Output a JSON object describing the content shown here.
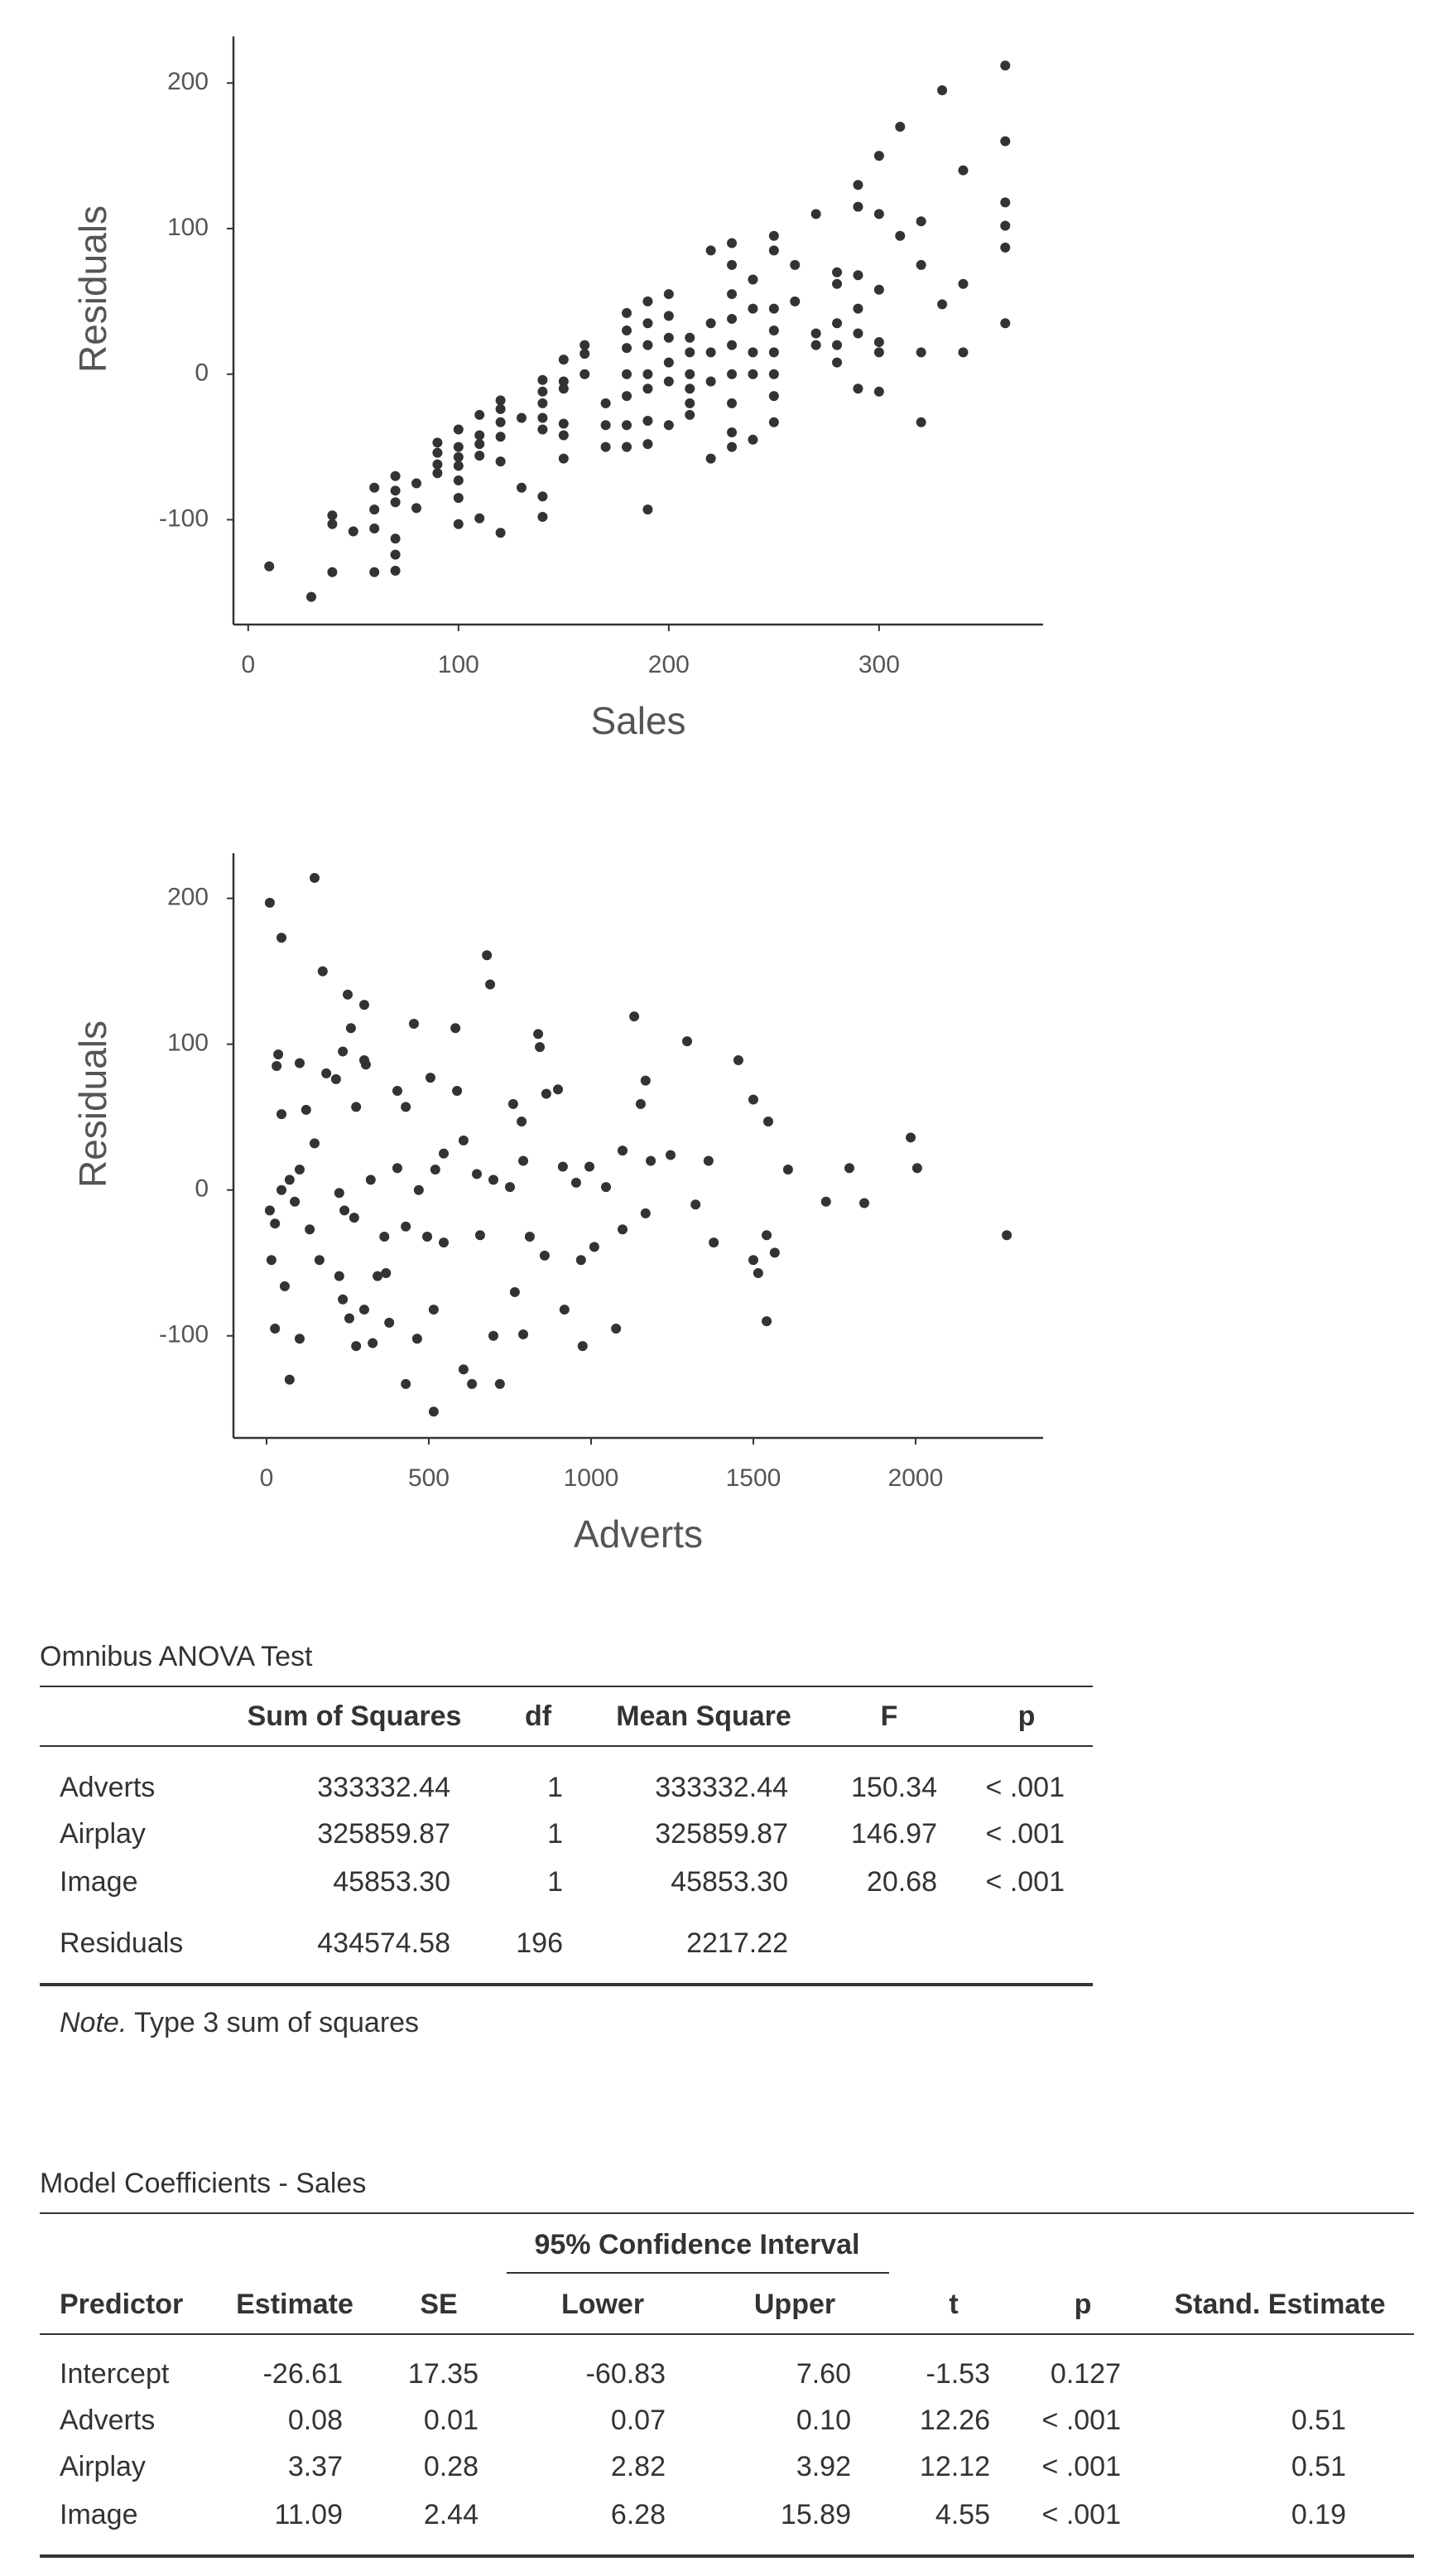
{
  "chart_data": [
    {
      "type": "scatter",
      "x_label": "Sales",
      "y_label": "Residuals",
      "color": "#333333",
      "xlim": [
        -7,
        378
      ],
      "ylim": [
        -172,
        232
      ],
      "xticks": [
        0,
        100,
        200,
        300
      ],
      "yticks": [
        -100,
        0,
        100,
        200
      ],
      "x": [
        10,
        30,
        40,
        40,
        40,
        50,
        60,
        60,
        60,
        60,
        70,
        70,
        70,
        70,
        70,
        70,
        80,
        80,
        90,
        90,
        90,
        90,
        100,
        100,
        100,
        100,
        100,
        100,
        100,
        110,
        110,
        110,
        110,
        110,
        120,
        120,
        120,
        120,
        120,
        120,
        130,
        130,
        140,
        140,
        140,
        140,
        140,
        140,
        140,
        150,
        150,
        150,
        150,
        150,
        150,
        160,
        160,
        160,
        170,
        170,
        170,
        180,
        180,
        180,
        180,
        180,
        180,
        180,
        190,
        190,
        190,
        190,
        190,
        190,
        190,
        190,
        200,
        200,
        200,
        200,
        200,
        200,
        210,
        210,
        210,
        210,
        210,
        210,
        220,
        220,
        220,
        220,
        220,
        230,
        230,
        230,
        230,
        230,
        230,
        230,
        230,
        230,
        240,
        240,
        240,
        240,
        240,
        250,
        250,
        250,
        250,
        250,
        250,
        250,
        250,
        260,
        260,
        270,
        270,
        270,
        280,
        280,
        280,
        280,
        280,
        290,
        290,
        290,
        290,
        290,
        290,
        300,
        300,
        300,
        300,
        300,
        300,
        310,
        310,
        320,
        320,
        320,
        320,
        330,
        330,
        340,
        340,
        340,
        360,
        360,
        360,
        360,
        360,
        360
      ],
      "y": [
        -132,
        -153,
        -97,
        -103,
        -136,
        -108,
        -78,
        -93,
        -106,
        -136,
        -70,
        -80,
        -88,
        -113,
        -124,
        -135,
        -75,
        -92,
        -47,
        -54,
        -62,
        -68,
        -38,
        -50,
        -57,
        -63,
        -73,
        -85,
        -103,
        -28,
        -42,
        -48,
        -56,
        -99,
        -18,
        -24,
        -33,
        -43,
        -60,
        -109,
        -30,
        -78,
        -4,
        -12,
        -20,
        -30,
        -38,
        -84,
        -98,
        10,
        -5,
        -10,
        -34,
        -42,
        -58,
        20,
        14,
        0,
        -20,
        -35,
        -50,
        42,
        30,
        18,
        0,
        -15,
        -35,
        -50,
        50,
        35,
        20,
        0,
        -10,
        -32,
        -48,
        -93,
        55,
        40,
        25,
        8,
        -5,
        -35,
        25,
        15,
        0,
        -10,
        -20,
        -28,
        85,
        35,
        15,
        -5,
        -58,
        90,
        75,
        55,
        38,
        20,
        0,
        -20,
        -40,
        -50,
        65,
        45,
        15,
        0,
        -45,
        95,
        85,
        45,
        30,
        15,
        0,
        -15,
        -33,
        75,
        50,
        110,
        28,
        20,
        70,
        62,
        35,
        20,
        8,
        130,
        115,
        68,
        45,
        28,
        -10,
        150,
        110,
        58,
        22,
        15,
        -12,
        170,
        95,
        105,
        75,
        15,
        -33,
        195,
        48,
        140,
        62,
        15,
        212,
        160,
        118,
        102,
        87,
        35
      ]
    },
    {
      "type": "scatter",
      "x_label": "Adverts",
      "y_label": "Residuals",
      "color": "#333333",
      "xlim": [
        -102,
        2393
      ],
      "ylim": [
        -170,
        231
      ],
      "xticks": [
        0,
        500,
        1000,
        1500,
        2000
      ],
      "yticks": [
        -100,
        0,
        100,
        200
      ],
      "x": [
        10,
        46,
        148,
        173,
        250,
        301,
        36,
        31,
        102,
        184,
        214,
        235,
        260,
        301,
        306,
        454,
        582,
        505,
        679,
        689,
        837,
        842,
        1133,
        1296,
        1454,
        1168,
        46,
        122,
        148,
        276,
        403,
        429,
        587,
        760,
        786,
        862,
        898,
        1153,
        1245,
        1362,
        1500,
        1546,
        1607,
        1796,
        1985,
        2005,
        2281,
        1724,
        1842,
        10,
        26,
        46,
        71,
        87,
        102,
        133,
        224,
        240,
        270,
        321,
        403,
        469,
        520,
        546,
        607,
        648,
        699,
        750,
        791,
        913,
        954,
        995,
        1046,
        1097,
        1184,
        15,
        26,
        71,
        56,
        102,
        163,
        224,
        235,
        255,
        301,
        276,
        327,
        368,
        363,
        429,
        378,
        429,
        464,
        515,
        515,
        495,
        546,
        607,
        633,
        699,
        719,
        765,
        791,
        811,
        857,
        918,
        974,
        969,
        1010,
        1077,
        1097,
        1168,
        1322,
        1378,
        1500,
        1515,
        1541,
        1566,
        1541,
        658,
        342
      ],
      "y": [
        197,
        173,
        214,
        150,
        134,
        127,
        93,
        85,
        87,
        80,
        76,
        95,
        111,
        89,
        86,
        114,
        111,
        77,
        161,
        141,
        107,
        98,
        119,
        102,
        89,
        75,
        52,
        55,
        32,
        57,
        68,
        57,
        68,
        59,
        47,
        66,
        69,
        59,
        24,
        20,
        62,
        47,
        14,
        15,
        36,
        15,
        -31,
        -8,
        -9,
        -14,
        -23,
        0,
        7,
        -8,
        14,
        -27,
        -2,
        -14,
        -19,
        7,
        15,
        0,
        14,
        25,
        34,
        11,
        7,
        2,
        20,
        16,
        5,
        16,
        2,
        27,
        20,
        -48,
        -95,
        -130,
        -66,
        -102,
        -48,
        -59,
        -75,
        -88,
        -82,
        -107,
        -105,
        -57,
        -32,
        -25,
        -91,
        -133,
        -102,
        -82,
        -152,
        -32,
        -36,
        -123,
        -133,
        -100,
        -133,
        -70,
        -99,
        -32,
        -45,
        -82,
        -107,
        -48,
        -39,
        -95,
        -27,
        -16,
        -10,
        -36,
        -48,
        -57,
        -31,
        -43,
        -90,
        -31,
        -59
      ]
    }
  ],
  "tables": [
    {
      "title": "Omnibus ANOVA Test",
      "columns": [
        "Sum of Squares",
        "df",
        "Mean Square",
        "F",
        "p"
      ],
      "rows": [
        [
          "Adverts",
          "333332.44",
          "1",
          "333332.44",
          "150.34",
          "< .001"
        ],
        [
          "Airplay",
          "325859.87",
          "1",
          "325859.87",
          "146.97",
          "< .001"
        ],
        [
          "Image",
          "45853.30",
          "1",
          "45853.30",
          "20.68",
          "< .001"
        ],
        [
          "Residuals",
          "434574.58",
          "196",
          "2217.22",
          null,
          null
        ]
      ],
      "note": {
        "label": "Note.",
        "text": "Type 3 sum of squares"
      }
    },
    {
      "title": "Model Coefficients - Sales",
      "group_header": "95% Confidence Interval",
      "columns": [
        "Predictor",
        "Estimate",
        "SE",
        "Lower",
        "Upper",
        "t",
        "p",
        "Stand. Estimate"
      ],
      "rows": [
        [
          "Intercept",
          "-26.61",
          "17.35",
          "-60.83",
          "7.60",
          "-1.53",
          "0.127",
          null
        ],
        [
          "Adverts",
          "0.08",
          "0.01",
          "0.07",
          "0.10",
          "12.26",
          "< .001",
          "0.51"
        ],
        [
          "Airplay",
          "3.37",
          "0.28",
          "2.82",
          "3.92",
          "12.12",
          "< .001",
          "0.51"
        ],
        [
          "Image",
          "11.09",
          "2.44",
          "6.28",
          "15.89",
          "4.55",
          "< .001",
          "0.19"
        ]
      ]
    }
  ]
}
